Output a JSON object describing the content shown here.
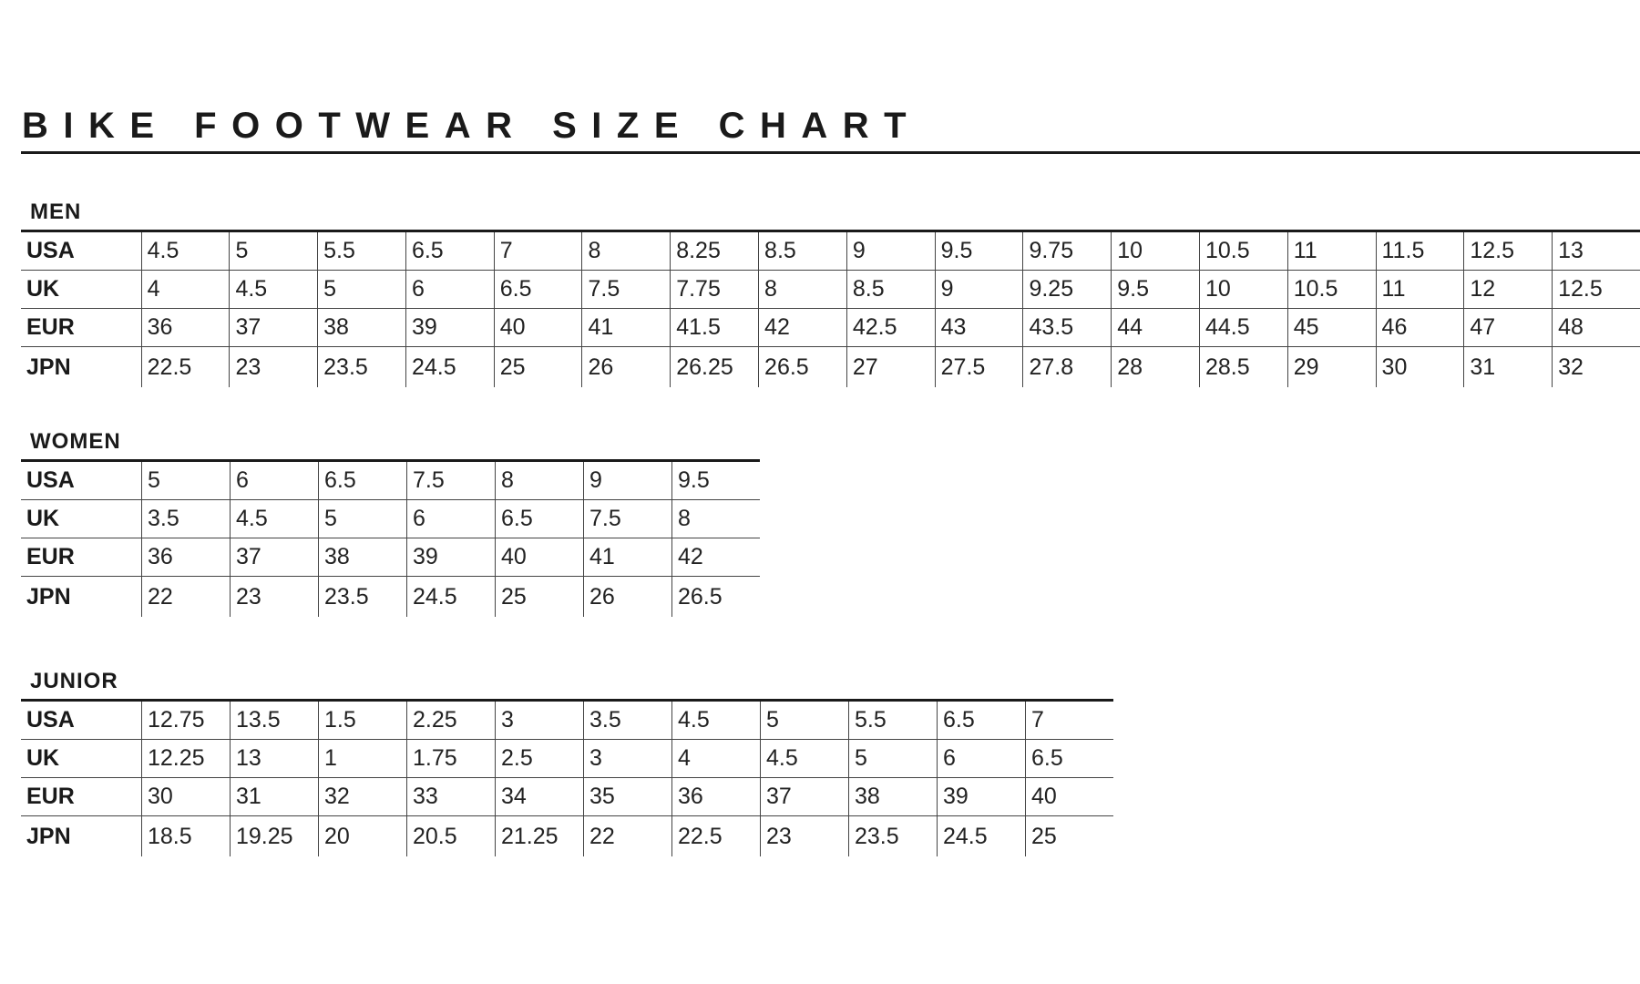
{
  "title": "BIKE FOOTWEAR SIZE CHART",
  "sections": [
    {
      "heading": "MEN",
      "rows": [
        {
          "label": "USA",
          "values": [
            "4.5",
            "5",
            "5.5",
            "6.5",
            "7",
            "8",
            "8.25",
            "8.5",
            "9",
            "9.5",
            "9.75",
            "10",
            "10.5",
            "11",
            "11.5",
            "12.5",
            "13"
          ]
        },
        {
          "label": "UK",
          "values": [
            "4",
            "4.5",
            "5",
            "6",
            "6.5",
            "7.5",
            "7.75",
            "8",
            "8.5",
            "9",
            "9.25",
            "9.5",
            "10",
            "10.5",
            "11",
            "12",
            "12.5"
          ]
        },
        {
          "label": "EUR",
          "values": [
            "36",
            "37",
            "38",
            "39",
            "40",
            "41",
            "41.5",
            "42",
            "42.5",
            "43",
            "43.5",
            "44",
            "44.5",
            "45",
            "46",
            "47",
            "48"
          ]
        },
        {
          "label": "JPN",
          "values": [
            "22.5",
            "23",
            "23.5",
            "24.5",
            "25",
            "26",
            "26.25",
            "26.5",
            "27",
            "27.5",
            "27.8",
            "28",
            "28.5",
            "29",
            "30",
            "31",
            "32"
          ]
        }
      ]
    },
    {
      "heading": "WOMEN",
      "rows": [
        {
          "label": "USA",
          "values": [
            "5",
            "6",
            "6.5",
            "7.5",
            "8",
            "9",
            "9.5"
          ]
        },
        {
          "label": "UK",
          "values": [
            "3.5",
            "4.5",
            "5",
            "6",
            "6.5",
            "7.5",
            "8"
          ]
        },
        {
          "label": "EUR",
          "values": [
            "36",
            "37",
            "38",
            "39",
            "40",
            "41",
            "42"
          ]
        },
        {
          "label": "JPN",
          "values": [
            "22",
            "23",
            "23.5",
            "24.5",
            "25",
            "26",
            "26.5"
          ]
        }
      ]
    },
    {
      "heading": "JUNIOR",
      "rows": [
        {
          "label": "USA",
          "values": [
            "12.75",
            "13.5",
            "1.5",
            "2.25",
            "3",
            "3.5",
            "4.5",
            "5",
            "5.5",
            "6.5",
            "7"
          ]
        },
        {
          "label": "UK",
          "values": [
            "12.25",
            "13",
            "1",
            "1.75",
            "2.5",
            "3",
            "4",
            "4.5",
            "5",
            "6",
            "6.5"
          ]
        },
        {
          "label": "EUR",
          "values": [
            "30",
            "31",
            "32",
            "33",
            "34",
            "35",
            "36",
            "37",
            "38",
            "39",
            "40"
          ]
        },
        {
          "label": "JPN",
          "values": [
            "18.5",
            "19.25",
            "20",
            "20.5",
            "21.25",
            "22",
            "22.5",
            "23",
            "23.5",
            "24.5",
            "25"
          ]
        }
      ]
    }
  ]
}
